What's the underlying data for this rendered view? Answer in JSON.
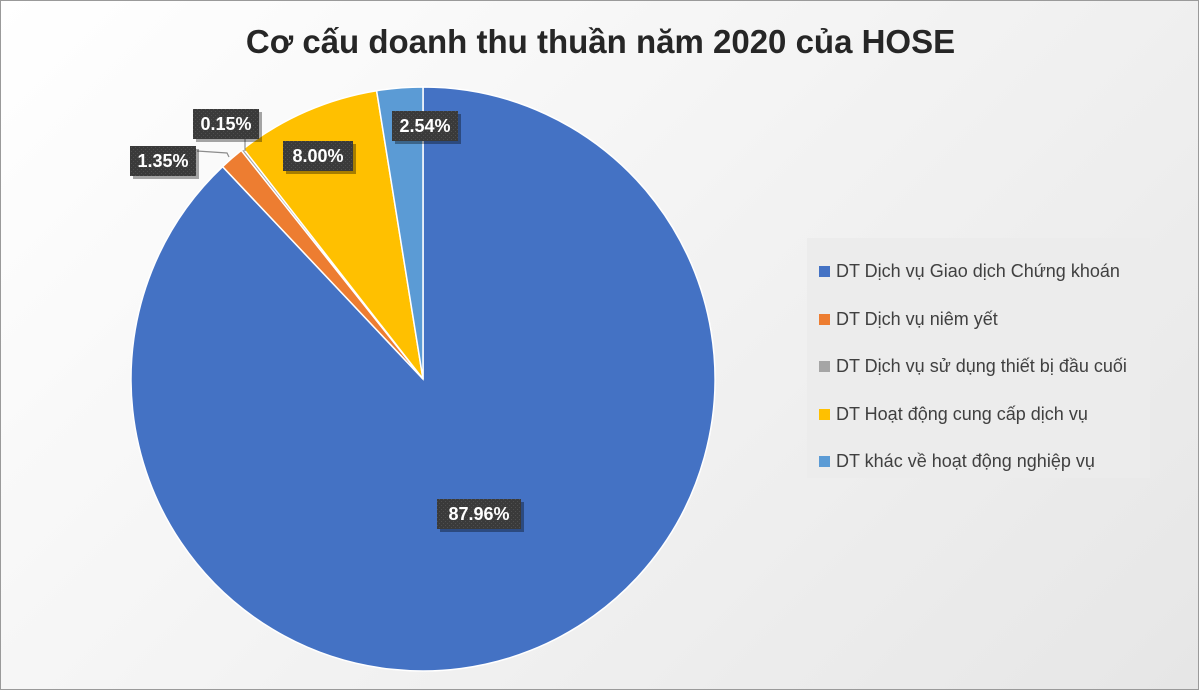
{
  "chart_data": {
    "type": "pie",
    "title": "Cơ cấu doanh thu thuần năm 2020 của HOSE",
    "start_angle_deg": 0,
    "direction": "clockwise",
    "legend_position": "right",
    "slices": [
      {
        "name": "DT Dịch vụ Giao dịch Chứng khoán",
        "value": 87.96,
        "label": "87.96%",
        "color": "#4472C4"
      },
      {
        "name": "DT Dịch vụ niêm yết",
        "value": 1.35,
        "label": "1.35%",
        "color": "#ED7D31"
      },
      {
        "name": "DT Dịch vụ sử dụng thiết bị đầu cuối",
        "value": 0.15,
        "label": "0.15%",
        "color": "#A5A5A5"
      },
      {
        "name": "DT Hoạt động cung cấp dịch vụ",
        "value": 8.0,
        "label": "8.00%",
        "color": "#FFC000"
      },
      {
        "name": "DT khác về hoạt động nghiệp vụ",
        "value": 2.54,
        "label": "2.54%",
        "color": "#5B9BD5"
      }
    ]
  }
}
